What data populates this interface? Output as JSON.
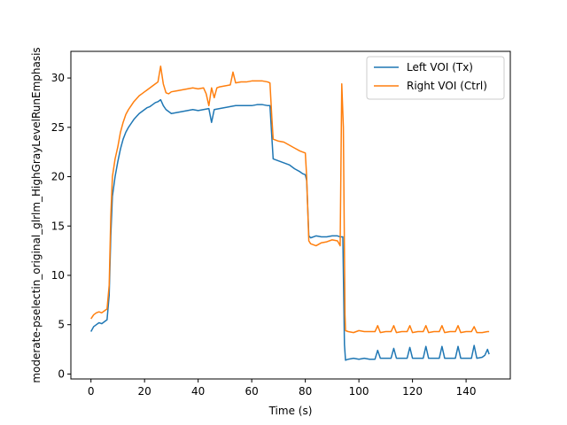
{
  "chart_data": {
    "type": "line",
    "title": "",
    "xlabel": "Time (s)",
    "ylabel": "moderate-pselectin_original_glrlm_HighGrayLevelRunEmphasis",
    "xlim": [
      -7.5,
      156.5
    ],
    "ylim": [
      -0.5,
      32.7
    ],
    "xticks": [
      0,
      20,
      40,
      60,
      80,
      100,
      120,
      140
    ],
    "yticks": [
      0,
      5,
      10,
      15,
      20,
      25,
      30
    ],
    "grid": false,
    "legend_position": "top-right",
    "series": [
      {
        "name": "Left VOI (Tx)",
        "color": "#1f77b4",
        "points": [
          [
            0,
            4.3
          ],
          [
            1,
            4.8
          ],
          [
            2,
            5.0
          ],
          [
            3,
            5.2
          ],
          [
            4,
            5.1
          ],
          [
            5,
            5.3
          ],
          [
            6,
            5.5
          ],
          [
            6.8,
            8.0
          ],
          [
            7.4,
            14.0
          ],
          [
            8,
            18.0
          ],
          [
            9,
            20.0
          ],
          [
            10,
            21.5
          ],
          [
            11,
            22.8
          ],
          [
            12,
            23.8
          ],
          [
            13,
            24.5
          ],
          [
            14,
            25.0
          ],
          [
            15,
            25.4
          ],
          [
            16,
            25.8
          ],
          [
            17,
            26.1
          ],
          [
            18,
            26.4
          ],
          [
            19,
            26.6
          ],
          [
            20,
            26.8
          ],
          [
            21,
            27.0
          ],
          [
            22,
            27.1
          ],
          [
            23,
            27.3
          ],
          [
            24,
            27.5
          ],
          [
            25,
            27.6
          ],
          [
            26,
            27.8
          ],
          [
            27,
            27.2
          ],
          [
            28,
            26.8
          ],
          [
            29,
            26.6
          ],
          [
            30,
            26.4
          ],
          [
            32,
            26.5
          ],
          [
            34,
            26.6
          ],
          [
            36,
            26.7
          ],
          [
            38,
            26.8
          ],
          [
            40,
            26.7
          ],
          [
            42,
            26.8
          ],
          [
            44,
            26.9
          ],
          [
            45,
            25.5
          ],
          [
            46,
            26.8
          ],
          [
            48,
            26.9
          ],
          [
            50,
            27.0
          ],
          [
            52,
            27.1
          ],
          [
            54,
            27.2
          ],
          [
            56,
            27.2
          ],
          [
            58,
            27.2
          ],
          [
            60,
            27.2
          ],
          [
            62,
            27.3
          ],
          [
            64,
            27.3
          ],
          [
            66,
            27.2
          ],
          [
            66.8,
            27.2
          ],
          [
            67.5,
            24.0
          ],
          [
            68,
            21.8
          ],
          [
            70,
            21.6
          ],
          [
            72,
            21.4
          ],
          [
            74,
            21.2
          ],
          [
            76,
            20.8
          ],
          [
            78,
            20.5
          ],
          [
            79,
            20.3
          ],
          [
            80,
            20.2
          ],
          [
            80.5,
            19.6
          ],
          [
            81.3,
            14.0
          ],
          [
            82,
            13.8
          ],
          [
            84,
            14.0
          ],
          [
            86,
            13.9
          ],
          [
            88,
            13.9
          ],
          [
            90,
            14.0
          ],
          [
            92,
            14.0
          ],
          [
            93,
            13.9
          ],
          [
            94,
            13.9
          ],
          [
            94.6,
            3.0
          ],
          [
            95,
            1.4
          ],
          [
            96,
            1.5
          ],
          [
            98,
            1.6
          ],
          [
            100,
            1.5
          ],
          [
            102,
            1.6
          ],
          [
            104,
            1.5
          ],
          [
            106,
            1.5
          ],
          [
            107,
            2.4
          ],
          [
            108,
            1.6
          ],
          [
            110,
            1.6
          ],
          [
            112,
            1.6
          ],
          [
            113,
            2.6
          ],
          [
            114,
            1.6
          ],
          [
            116,
            1.6
          ],
          [
            118,
            1.6
          ],
          [
            119,
            2.7
          ],
          [
            120,
            1.6
          ],
          [
            122,
            1.6
          ],
          [
            124,
            1.6
          ],
          [
            125,
            2.8
          ],
          [
            126,
            1.6
          ],
          [
            128,
            1.6
          ],
          [
            130,
            1.6
          ],
          [
            131,
            2.8
          ],
          [
            132,
            1.6
          ],
          [
            134,
            1.6
          ],
          [
            136,
            1.6
          ],
          [
            137,
            2.8
          ],
          [
            138,
            1.6
          ],
          [
            140,
            1.6
          ],
          [
            142,
            1.6
          ],
          [
            143,
            2.9
          ],
          [
            144,
            1.6
          ],
          [
            146,
            1.7
          ],
          [
            147,
            1.9
          ],
          [
            148,
            2.5
          ],
          [
            148.6,
            2.0
          ]
        ]
      },
      {
        "name": "Right VOI (Ctrl)",
        "color": "#ff7f0e",
        "points": [
          [
            0,
            5.6
          ],
          [
            1,
            6.0
          ],
          [
            2,
            6.2
          ],
          [
            3,
            6.3
          ],
          [
            4,
            6.2
          ],
          [
            5,
            6.4
          ],
          [
            6,
            6.6
          ],
          [
            6.8,
            9.0
          ],
          [
            7.4,
            16.0
          ],
          [
            8,
            20.0
          ],
          [
            9,
            21.8
          ],
          [
            10,
            23.0
          ],
          [
            11,
            24.5
          ],
          [
            12,
            25.5
          ],
          [
            13,
            26.3
          ],
          [
            14,
            26.8
          ],
          [
            15,
            27.2
          ],
          [
            16,
            27.6
          ],
          [
            17,
            27.9
          ],
          [
            18,
            28.2
          ],
          [
            19,
            28.4
          ],
          [
            20,
            28.6
          ],
          [
            21,
            28.8
          ],
          [
            22,
            29.0
          ],
          [
            23,
            29.2
          ],
          [
            24,
            29.4
          ],
          [
            25,
            29.6
          ],
          [
            26,
            31.2
          ],
          [
            27,
            29.4
          ],
          [
            28,
            28.5
          ],
          [
            29,
            28.4
          ],
          [
            30,
            28.6
          ],
          [
            32,
            28.7
          ],
          [
            34,
            28.8
          ],
          [
            36,
            28.9
          ],
          [
            38,
            29.0
          ],
          [
            40,
            28.9
          ],
          [
            42,
            29.0
          ],
          [
            43,
            28.4
          ],
          [
            44,
            27.2
          ],
          [
            45,
            29.0
          ],
          [
            46,
            28.0
          ],
          [
            47,
            29.0
          ],
          [
            48,
            29.1
          ],
          [
            50,
            29.2
          ],
          [
            52,
            29.3
          ],
          [
            53,
            30.6
          ],
          [
            54,
            29.5
          ],
          [
            56,
            29.6
          ],
          [
            58,
            29.6
          ],
          [
            60,
            29.7
          ],
          [
            62,
            29.7
          ],
          [
            64,
            29.7
          ],
          [
            66,
            29.6
          ],
          [
            66.8,
            29.5
          ],
          [
            67.5,
            26.0
          ],
          [
            68,
            23.8
          ],
          [
            70,
            23.6
          ],
          [
            72,
            23.5
          ],
          [
            74,
            23.2
          ],
          [
            76,
            22.9
          ],
          [
            78,
            22.6
          ],
          [
            80,
            22.4
          ],
          [
            80.5,
            20.0
          ],
          [
            81.3,
            13.5
          ],
          [
            82,
            13.2
          ],
          [
            84,
            13.0
          ],
          [
            86,
            13.3
          ],
          [
            88,
            13.4
          ],
          [
            90,
            13.6
          ],
          [
            92,
            13.5
          ],
          [
            93,
            13.0
          ],
          [
            93.6,
            29.4
          ],
          [
            94.2,
            25.0
          ],
          [
            94.8,
            6.0
          ],
          [
            95,
            4.4
          ],
          [
            96,
            4.3
          ],
          [
            98,
            4.2
          ],
          [
            100,
            4.4
          ],
          [
            102,
            4.3
          ],
          [
            104,
            4.3
          ],
          [
            106,
            4.3
          ],
          [
            107,
            4.9
          ],
          [
            108,
            4.2
          ],
          [
            110,
            4.3
          ],
          [
            112,
            4.3
          ],
          [
            113,
            4.9
          ],
          [
            114,
            4.2
          ],
          [
            116,
            4.3
          ],
          [
            118,
            4.3
          ],
          [
            119,
            4.9
          ],
          [
            120,
            4.2
          ],
          [
            122,
            4.3
          ],
          [
            124,
            4.3
          ],
          [
            125,
            4.9
          ],
          [
            126,
            4.2
          ],
          [
            128,
            4.3
          ],
          [
            130,
            4.3
          ],
          [
            131,
            4.9
          ],
          [
            132,
            4.2
          ],
          [
            134,
            4.3
          ],
          [
            136,
            4.3
          ],
          [
            137,
            4.9
          ],
          [
            138,
            4.2
          ],
          [
            140,
            4.3
          ],
          [
            142,
            4.3
          ],
          [
            143,
            4.8
          ],
          [
            144,
            4.2
          ],
          [
            146,
            4.2
          ],
          [
            148,
            4.3
          ],
          [
            148.6,
            4.3
          ]
        ]
      }
    ]
  }
}
